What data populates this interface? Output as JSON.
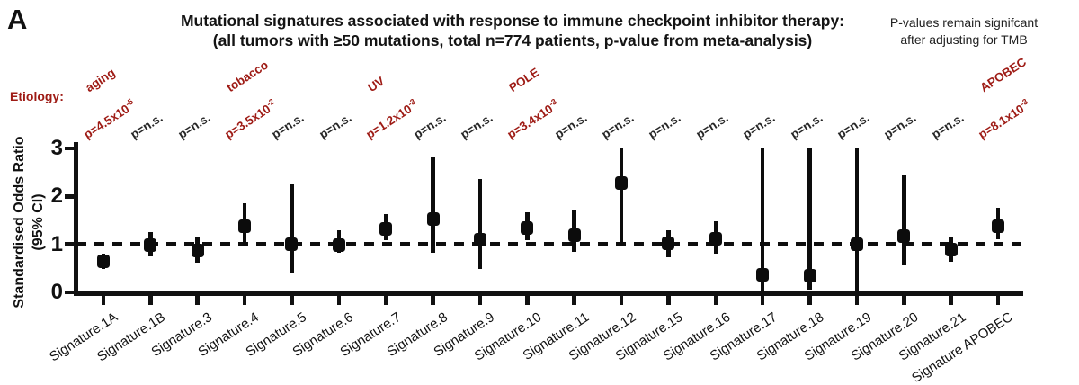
{
  "panel_label": "A",
  "title": {
    "line1": "Mutational signatures associated with response to immune checkpoint inhibitor therapy:",
    "line2": "(all tumors with ≥50 mutations, total n=774 patients, p-value from meta-analysis)"
  },
  "note": {
    "line1": "P-values remain signifcant",
    "line2": "after adjusting for TMB"
  },
  "etiology_header": "Etiology:",
  "y_axis": {
    "label_line1": "Standardised Odds Ratio",
    "label_line2": "(95% CI)"
  },
  "colors": {
    "accent_red": "#9e1b15",
    "marker_black": "#0c0c0c"
  },
  "chart_data": {
    "type": "scatter",
    "variant": "forest_plot_error_bars",
    "title": "Mutational signatures associated with response to immune checkpoint inhibitor therapy:",
    "subtitle": "(all tumors with ≥50 mutations, total n=774 patients, p-value from meta-analysis)",
    "ylabel": "Standardised Odds Ratio (95% CI)",
    "ylim": [
      0,
      3
    ],
    "yticks": [
      3,
      2,
      1,
      0
    ],
    "reference_line_y": 1,
    "grid": false,
    "annotation": "P-values remain signifcant after adjusting for TMB",
    "categories": [
      "Signature.1A",
      "Signature.1B",
      "Signature.3",
      "Signature.4",
      "Signature.5",
      "Signature.6",
      "Signature.7",
      "Signature.8",
      "Signature.9",
      "Signature.10",
      "Signature.11",
      "Signature.12",
      "Signature.15",
      "Signature.16",
      "Signature.17",
      "Signature.18",
      "Signature.19",
      "Signature.20",
      "Signature.21",
      "Signature APOBEC"
    ],
    "points": [
      {
        "label": "Signature.1A",
        "or": 0.64,
        "ci_low": 0.48,
        "ci_high": 0.8,
        "p_base": "p=4.5x10",
        "p_exp": "-5",
        "p_significant": true,
        "etiology": "aging"
      },
      {
        "label": "Signature.1B",
        "or": 0.98,
        "ci_low": 0.75,
        "ci_high": 1.25,
        "p_base": "p=n.s.",
        "p_exp": "",
        "p_significant": false,
        "etiology": null
      },
      {
        "label": "Signature.3",
        "or": 0.87,
        "ci_low": 0.62,
        "ci_high": 1.15,
        "p_base": "p=n.s.",
        "p_exp": "",
        "p_significant": false,
        "etiology": null
      },
      {
        "label": "Signature.4",
        "or": 1.38,
        "ci_low": 0.98,
        "ci_high": 1.86,
        "p_base": "p=3.5x10",
        "p_exp": "-2",
        "p_significant": true,
        "etiology": "tobacco"
      },
      {
        "label": "Signature.5",
        "or": 1.0,
        "ci_low": 0.42,
        "ci_high": 2.25,
        "p_base": "p=n.s.",
        "p_exp": "",
        "p_significant": false,
        "etiology": null
      },
      {
        "label": "Signature.6",
        "or": 0.98,
        "ci_low": 0.82,
        "ci_high": 1.29,
        "p_base": "p=n.s.",
        "p_exp": "",
        "p_significant": false,
        "etiology": null
      },
      {
        "label": "Signature.7",
        "or": 1.32,
        "ci_low": 1.08,
        "ci_high": 1.63,
        "p_base": "p=1.2x10",
        "p_exp": "-3",
        "p_significant": true,
        "etiology": "UV"
      },
      {
        "label": "Signature.8",
        "or": 1.52,
        "ci_low": 0.82,
        "ci_high": 2.83,
        "p_base": "p=n.s.",
        "p_exp": "",
        "p_significant": false,
        "etiology": null
      },
      {
        "label": "Signature.9",
        "or": 1.1,
        "ci_low": 0.49,
        "ci_high": 2.36,
        "p_base": "p=n.s.",
        "p_exp": "",
        "p_significant": false,
        "etiology": null
      },
      {
        "label": "Signature.10",
        "or": 1.34,
        "ci_low": 1.08,
        "ci_high": 1.67,
        "p_base": "p=3.4x10",
        "p_exp": "-3",
        "p_significant": true,
        "etiology": "POLE"
      },
      {
        "label": "Signature.11",
        "or": 1.2,
        "ci_low": 0.84,
        "ci_high": 1.73,
        "p_base": "p=n.s.",
        "p_exp": "",
        "p_significant": false,
        "etiology": null
      },
      {
        "label": "Signature.12",
        "or": 2.28,
        "ci_low": 0.95,
        "ci_high": 3.0,
        "p_base": "p=n.s.",
        "p_exp": "",
        "p_significant": false,
        "etiology": null
      },
      {
        "label": "Signature.15",
        "or": 1.02,
        "ci_low": 0.73,
        "ci_high": 1.3,
        "p_base": "p=n.s.",
        "p_exp": "",
        "p_significant": false,
        "etiology": null
      },
      {
        "label": "Signature.16",
        "or": 1.11,
        "ci_low": 0.81,
        "ci_high": 1.48,
        "p_base": "p=n.s.",
        "p_exp": "",
        "p_significant": false,
        "etiology": null
      },
      {
        "label": "Signature.17",
        "or": 0.37,
        "ci_low": 0.01,
        "ci_high": 3.0,
        "p_base": "p=n.s.",
        "p_exp": "",
        "p_significant": false,
        "etiology": null
      },
      {
        "label": "Signature.18",
        "or": 0.35,
        "ci_low": 0.05,
        "ci_high": 3.0,
        "p_base": "p=n.s.",
        "p_exp": "",
        "p_significant": false,
        "etiology": null
      },
      {
        "label": "Signature.19",
        "or": 1.0,
        "ci_low": 0.02,
        "ci_high": 3.0,
        "p_base": "p=n.s.",
        "p_exp": "",
        "p_significant": false,
        "etiology": null
      },
      {
        "label": "Signature.20",
        "or": 1.17,
        "ci_low": 0.57,
        "ci_high": 2.44,
        "p_base": "p=n.s.",
        "p_exp": "",
        "p_significant": false,
        "etiology": null
      },
      {
        "label": "Signature.21",
        "or": 0.9,
        "ci_low": 0.64,
        "ci_high": 1.17,
        "p_base": "p=n.s.",
        "p_exp": "",
        "p_significant": false,
        "etiology": null
      },
      {
        "label": "Signature APOBEC",
        "or": 1.37,
        "ci_low": 1.11,
        "ci_high": 1.76,
        "p_base": "p=8.1x10",
        "p_exp": "-3",
        "p_significant": true,
        "etiology": "APOBEC"
      }
    ]
  }
}
